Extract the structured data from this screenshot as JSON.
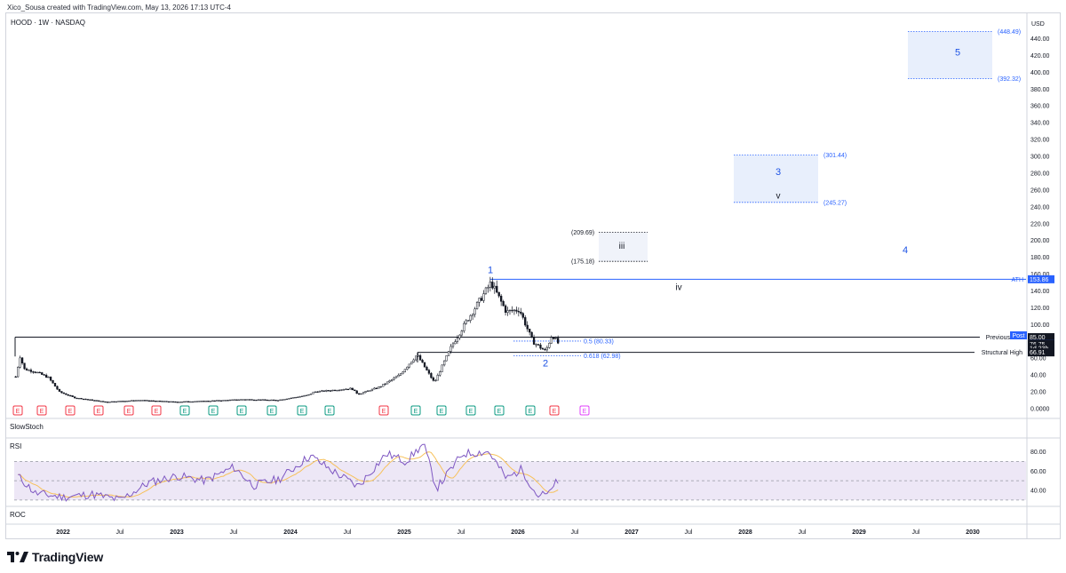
{
  "header": {
    "credit": "Xico_Sousa created with TradingView.com, May 13, 2026 17:13 UTC-4"
  },
  "chart": {
    "symbol": "HOOD · 1W · NASDAQ",
    "currency": "USD"
  },
  "price_axis": {
    "ticks": [
      "440.00",
      "420.00",
      "400.00",
      "380.00",
      "360.00",
      "340.00",
      "320.00",
      "300.00",
      "280.00",
      "260.00",
      "240.00",
      "220.00",
      "200.00",
      "180.00",
      "160.00",
      "140.00",
      "120.00",
      "100.00",
      "80.00",
      "60.00",
      "40.00",
      "20.00",
      "0.0000"
    ]
  },
  "price_badges": [
    {
      "name": "ath-badge",
      "text": "153.86",
      "color": "#2962ff",
      "fg": "#ffffff",
      "price": 153.86
    },
    {
      "name": "previous-badge",
      "text": "85.00",
      "color": "#131722",
      "fg": "#ffffff",
      "price": 85.0
    },
    {
      "name": "last-price-badge",
      "text": "76.79",
      "color": "#2962ff",
      "fg": "#ffffff",
      "price": 76.79
    },
    {
      "name": "post-price-badge",
      "text": "76.75",
      "color": "#131722",
      "fg": "#ffffff",
      "price": 76.75
    },
    {
      "name": "countdown-badge",
      "text": "1d 23h",
      "color": "#131722",
      "fg": "#ffffff",
      "price": 71.8
    },
    {
      "name": "structural-high-badge",
      "text": "66.91",
      "color": "#131722",
      "fg": "#ffffff",
      "price": 66.91
    }
  ],
  "post_label": "Post",
  "lines": {
    "ath": "ATH",
    "previous": "Previous",
    "structural_high": "Structural High"
  },
  "fib": {
    "f05": "0.5 (80.33)",
    "f0618": "0.618 (62.98)"
  },
  "wave_labels": {
    "w1": "1",
    "w2": "2",
    "w3": "3",
    "w4": "4",
    "w5": "5",
    "wiii": "iii",
    "wiv": "iv",
    "wv": "v"
  },
  "targets": {
    "iii_top": "(209.69)",
    "iii_bot": "(175.18)",
    "w3_top": "(301.44)",
    "w3_bot": "(245.27)",
    "w5_top": "(448.49)",
    "w5_bot": "(392.32)"
  },
  "earnings_markers": [
    {
      "label": "E",
      "kind": "negative"
    },
    {
      "label": "E",
      "kind": "negative"
    },
    {
      "label": "E",
      "kind": "negative"
    },
    {
      "label": "E",
      "kind": "negative"
    },
    {
      "label": "E",
      "kind": "negative"
    },
    {
      "label": "E",
      "kind": "negative"
    },
    {
      "label": "E",
      "kind": "positive"
    },
    {
      "label": "E",
      "kind": "positive"
    },
    {
      "label": "E",
      "kind": "positive"
    },
    {
      "label": "E",
      "kind": "positive"
    },
    {
      "label": "E",
      "kind": "positive"
    },
    {
      "label": "E",
      "kind": "positive"
    },
    {
      "label": "E",
      "kind": "negative"
    },
    {
      "label": "E",
      "kind": "positive"
    },
    {
      "label": "E",
      "kind": "positive"
    },
    {
      "label": "E",
      "kind": "positive"
    },
    {
      "label": "E",
      "kind": "positive"
    },
    {
      "label": "E",
      "kind": "positive"
    },
    {
      "label": "E",
      "kind": "negative"
    },
    {
      "label": "E",
      "kind": "upcoming"
    }
  ],
  "panes": {
    "slowstoch": "SlowStoch",
    "rsi": "RSI",
    "roc": "ROC"
  },
  "rsi_axis": {
    "ticks": [
      "80.00",
      "60.00",
      "40.00"
    ]
  },
  "time_axis": {
    "labels": [
      {
        "text": "2022",
        "bold": true
      },
      {
        "text": "Jul",
        "bold": false
      },
      {
        "text": "2023",
        "bold": true
      },
      {
        "text": "Jul",
        "bold": false
      },
      {
        "text": "2024",
        "bold": true
      },
      {
        "text": "Jul",
        "bold": false
      },
      {
        "text": "2025",
        "bold": true
      },
      {
        "text": "Jul",
        "bold": false
      },
      {
        "text": "2026",
        "bold": true
      },
      {
        "text": "Jul",
        "bold": false
      },
      {
        "text": "2027",
        "bold": true
      },
      {
        "text": "Jul",
        "bold": false
      },
      {
        "text": "2028",
        "bold": true
      },
      {
        "text": "Jul",
        "bold": false
      },
      {
        "text": "2029",
        "bold": true
      },
      {
        "text": "Jul",
        "bold": false
      },
      {
        "text": "2030",
        "bold": true
      }
    ]
  },
  "colors": {
    "accent_blue": "#2962ff",
    "earnings_negative": "#f23645",
    "earnings_positive": "#089981",
    "earnings_upcoming": "#e040fb",
    "rsi_line": "#7e57c2",
    "rsi_ma": "#f7c15a",
    "rsi_band": "#ede7f6"
  },
  "chart_data": {
    "type": "candlestick",
    "symbol": "HOOD",
    "interval": "1W",
    "y_unit": "USD",
    "ylim": [
      0,
      450
    ],
    "x_range": [
      "2021-07",
      "2030-04"
    ],
    "price_path": [
      {
        "date": "2021-08-02",
        "price": 38
      },
      {
        "date": "2021-08-16",
        "price": 62
      },
      {
        "date": "2021-08-30",
        "price": 47
      },
      {
        "date": "2021-10-04",
        "price": 44
      },
      {
        "date": "2021-11-15",
        "price": 37
      },
      {
        "date": "2021-12-20",
        "price": 20
      },
      {
        "date": "2022-02-07",
        "price": 13
      },
      {
        "date": "2022-05-16",
        "price": 8
      },
      {
        "date": "2022-09-05",
        "price": 10
      },
      {
        "date": "2022-12-26",
        "price": 8
      },
      {
        "date": "2023-04-03",
        "price": 9
      },
      {
        "date": "2023-08-07",
        "price": 11
      },
      {
        "date": "2023-11-20",
        "price": 10
      },
      {
        "date": "2024-02-26",
        "price": 16
      },
      {
        "date": "2024-03-18",
        "price": 20
      },
      {
        "date": "2024-07-15",
        "price": 24
      },
      {
        "date": "2024-08-05",
        "price": 17
      },
      {
        "date": "2024-10-14",
        "price": 26
      },
      {
        "date": "2024-12-16",
        "price": 40
      },
      {
        "date": "2025-02-10",
        "price": 64
      },
      {
        "date": "2025-04-07",
        "price": 31
      },
      {
        "date": "2025-06-02",
        "price": 75
      },
      {
        "date": "2025-07-21",
        "price": 105
      },
      {
        "date": "2025-10-06",
        "price": 150
      },
      {
        "date": "2025-11-24",
        "price": 115
      },
      {
        "date": "2026-01-05",
        "price": 118
      },
      {
        "date": "2026-02-16",
        "price": 80
      },
      {
        "date": "2026-03-30",
        "price": 68
      },
      {
        "date": "2026-04-20",
        "price": 88
      },
      {
        "date": "2026-05-11",
        "price": 76.79
      }
    ],
    "levels": [
      {
        "label": "ATH",
        "value": 153.86
      },
      {
        "label": "Previous",
        "value": 85.0
      },
      {
        "label": "Structural High",
        "value": 66.91
      },
      {
        "label": "0.5",
        "value": 80.33
      },
      {
        "label": "0.618",
        "value": 62.98
      }
    ],
    "target_zones": [
      {
        "label": "iii",
        "low": 175.18,
        "high": 209.69
      },
      {
        "label": "3",
        "low": 245.27,
        "high": 301.44
      },
      {
        "label": "5",
        "low": 392.32,
        "high": 448.49
      }
    ],
    "rsi": {
      "ylim": [
        25,
        95
      ],
      "bands": [
        30,
        70
      ],
      "values": [
        {
          "date": "2021-08-09",
          "v": 55
        },
        {
          "date": "2021-10-04",
          "v": 37
        },
        {
          "date": "2022-01-03",
          "v": 33
        },
        {
          "date": "2022-04-04",
          "v": 36
        },
        {
          "date": "2022-07-04",
          "v": 30
        },
        {
          "date": "2022-10-03",
          "v": 48
        },
        {
          "date": "2023-01-02",
          "v": 55
        },
        {
          "date": "2023-04-03",
          "v": 50
        },
        {
          "date": "2023-07-03",
          "v": 64
        },
        {
          "date": "2023-09-04",
          "v": 45
        },
        {
          "date": "2023-11-27",
          "v": 52
        },
        {
          "date": "2024-03-04",
          "v": 76
        },
        {
          "date": "2024-05-06",
          "v": 62
        },
        {
          "date": "2024-08-05",
          "v": 44
        },
        {
          "date": "2024-11-04",
          "v": 78
        },
        {
          "date": "2025-01-06",
          "v": 70
        },
        {
          "date": "2025-03-03",
          "v": 88
        },
        {
          "date": "2025-04-14",
          "v": 42
        },
        {
          "date": "2025-07-07",
          "v": 78
        },
        {
          "date": "2025-09-29",
          "v": 80
        },
        {
          "date": "2025-11-24",
          "v": 52
        },
        {
          "date": "2026-01-12",
          "v": 62
        },
        {
          "date": "2026-03-02",
          "v": 35
        },
        {
          "date": "2026-04-13",
          "v": 36
        },
        {
          "date": "2026-04-27",
          "v": 49
        },
        {
          "date": "2026-05-11",
          "v": 44
        }
      ]
    }
  }
}
